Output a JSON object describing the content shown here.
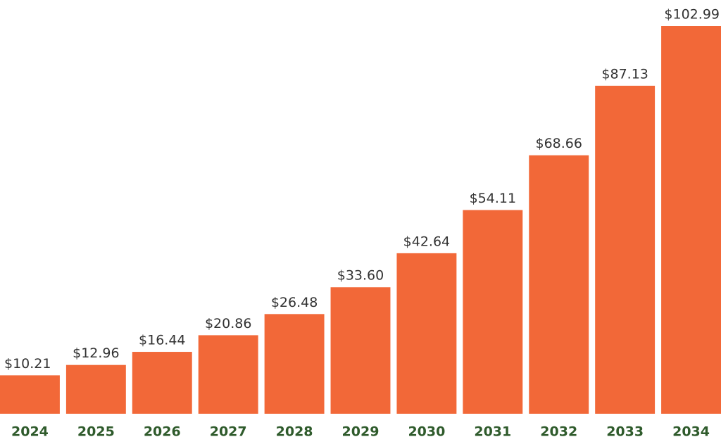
{
  "chart_data": {
    "type": "bar",
    "categories": [
      "2024",
      "2025",
      "2026",
      "2027",
      "2028",
      "2029",
      "2030",
      "2031",
      "2032",
      "2033",
      "2034"
    ],
    "values": [
      10.21,
      12.96,
      16.44,
      20.86,
      26.48,
      33.6,
      42.64,
      54.11,
      68.66,
      87.13,
      102.99
    ],
    "value_labels": [
      "$10.21",
      "$12.96",
      "$16.44",
      "$20.86",
      "$26.48",
      "$33.60",
      "$42.64",
      "$54.11",
      "$68.66",
      "$87.13",
      "$102.99"
    ],
    "color": "#f26838"
  }
}
